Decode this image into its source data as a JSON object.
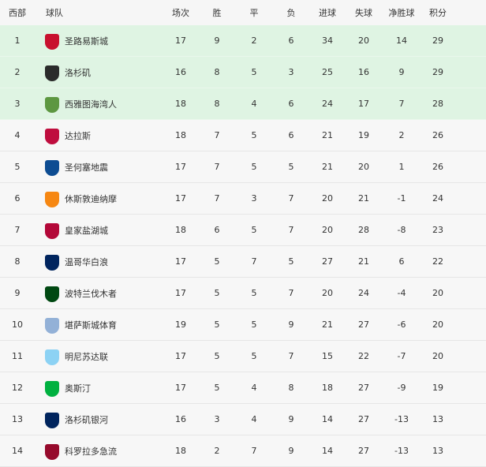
{
  "header": {
    "rank": "西部",
    "team": "球队",
    "played": "场次",
    "won": "胜",
    "drawn": "平",
    "lost": "负",
    "gf": "进球",
    "ga": "失球",
    "gd": "净胜球",
    "pts": "积分"
  },
  "highlight_color": "#dff4e3",
  "rows": [
    {
      "rank": "1",
      "team": "圣路易斯城",
      "logo_color": "#c8102e",
      "played": "17",
      "won": "9",
      "drawn": "2",
      "lost": "6",
      "gf": "34",
      "ga": "20",
      "gd": "14",
      "pts": "29"
    },
    {
      "rank": "2",
      "team": "洛杉矶",
      "logo_color": "#2b2b2b",
      "played": "16",
      "won": "8",
      "drawn": "5",
      "lost": "3",
      "gf": "25",
      "ga": "16",
      "gd": "9",
      "pts": "29"
    },
    {
      "rank": "3",
      "team": "西雅图海湾人",
      "logo_color": "#5d9741",
      "played": "18",
      "won": "8",
      "drawn": "4",
      "lost": "6",
      "gf": "24",
      "ga": "17",
      "gd": "7",
      "pts": "28"
    },
    {
      "rank": "4",
      "team": "达拉斯",
      "logo_color": "#bf0d3e",
      "played": "18",
      "won": "7",
      "drawn": "5",
      "lost": "6",
      "gf": "21",
      "ga": "19",
      "gd": "2",
      "pts": "26"
    },
    {
      "rank": "5",
      "team": "圣何塞地震",
      "logo_color": "#0d4c92",
      "played": "17",
      "won": "7",
      "drawn": "5",
      "lost": "5",
      "gf": "21",
      "ga": "20",
      "gd": "1",
      "pts": "26"
    },
    {
      "rank": "6",
      "team": "休斯敦迪纳摩",
      "logo_color": "#f68712",
      "played": "17",
      "won": "7",
      "drawn": "3",
      "lost": "7",
      "gf": "20",
      "ga": "21",
      "gd": "-1",
      "pts": "24"
    },
    {
      "rank": "7",
      "team": "皇家盐湖城",
      "logo_color": "#b30838",
      "played": "18",
      "won": "6",
      "drawn": "5",
      "lost": "7",
      "gf": "20",
      "ga": "28",
      "gd": "-8",
      "pts": "23"
    },
    {
      "rank": "8",
      "team": "温哥华白浪",
      "logo_color": "#00245e",
      "played": "17",
      "won": "5",
      "drawn": "7",
      "lost": "5",
      "gf": "27",
      "ga": "21",
      "gd": "6",
      "pts": "22"
    },
    {
      "rank": "9",
      "team": "波特兰伐木者",
      "logo_color": "#004812",
      "played": "17",
      "won": "5",
      "drawn": "5",
      "lost": "7",
      "gf": "20",
      "ga": "24",
      "gd": "-4",
      "pts": "20"
    },
    {
      "rank": "10",
      "team": "堪萨斯城体育",
      "logo_color": "#93b1d7",
      "played": "19",
      "won": "5",
      "drawn": "5",
      "lost": "9",
      "gf": "21",
      "ga": "27",
      "gd": "-6",
      "pts": "20"
    },
    {
      "rank": "11",
      "team": "明尼苏达联",
      "logo_color": "#8cd2f4",
      "played": "17",
      "won": "5",
      "drawn": "5",
      "lost": "7",
      "gf": "15",
      "ga": "22",
      "gd": "-7",
      "pts": "20"
    },
    {
      "rank": "12",
      "team": "奥斯汀",
      "logo_color": "#00b140",
      "played": "17",
      "won": "5",
      "drawn": "4",
      "lost": "8",
      "gf": "18",
      "ga": "27",
      "gd": "-9",
      "pts": "19"
    },
    {
      "rank": "13",
      "team": "洛杉矶银河",
      "logo_color": "#00245d",
      "played": "16",
      "won": "3",
      "drawn": "4",
      "lost": "9",
      "gf": "14",
      "ga": "27",
      "gd": "-13",
      "pts": "13"
    },
    {
      "rank": "14",
      "team": "科罗拉多急流",
      "logo_color": "#960a2c",
      "played": "18",
      "won": "2",
      "drawn": "7",
      "lost": "9",
      "gf": "14",
      "ga": "27",
      "gd": "-13",
      "pts": "13"
    }
  ]
}
